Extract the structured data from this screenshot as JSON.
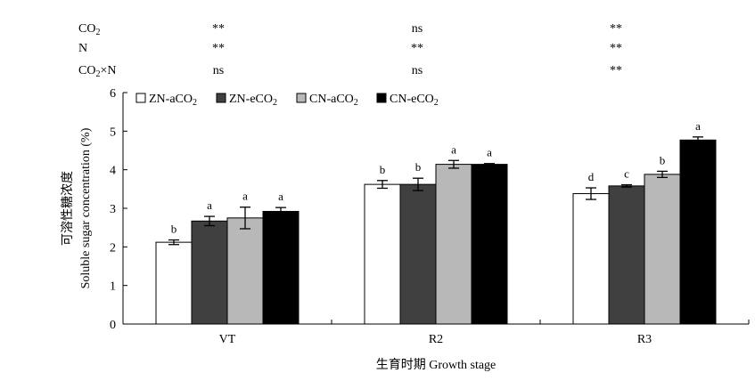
{
  "significance": {
    "rows": [
      {
        "factor": "CO",
        "sub": "2",
        "rest": "",
        "marks": [
          "**",
          "ns",
          "**"
        ]
      },
      {
        "factor": "N",
        "sub": "",
        "rest": "",
        "marks": [
          "**",
          "**",
          "**"
        ]
      },
      {
        "factor": "CO",
        "sub": "2",
        "rest": "×N",
        "marks": [
          "ns",
          "ns",
          "**"
        ]
      }
    ]
  },
  "chart_data": {
    "type": "bar",
    "xlabel": "生育时期 Growth stage",
    "ylabel_cn": "可溶性糖浓度",
    "ylabel_en": "Soluble sugar concentration (%)",
    "ylim": [
      0,
      6
    ],
    "yticks": [
      0,
      1,
      2,
      3,
      4,
      5,
      6
    ],
    "categories": [
      "VT",
      "R2",
      "R3"
    ],
    "legend_position": "top-left",
    "series": [
      {
        "name": "ZN-aCO",
        "name_sub": "2",
        "color": "#ffffff",
        "values": [
          2.12,
          3.62,
          3.38
        ],
        "errors": [
          0.06,
          0.1,
          0.15
        ],
        "letters": [
          "b",
          "b",
          "d"
        ]
      },
      {
        "name": "ZN-eCO",
        "name_sub": "2",
        "color": "#404040",
        "values": [
          2.67,
          3.62,
          3.58
        ],
        "errors": [
          0.12,
          0.16,
          0.03
        ],
        "letters": [
          "a",
          "b",
          "c"
        ]
      },
      {
        "name": "CN-aCO",
        "name_sub": "2",
        "color": "#b8b8b8",
        "values": [
          2.75,
          4.14,
          3.88
        ],
        "errors": [
          0.28,
          0.1,
          0.08
        ],
        "letters": [
          "a",
          "a",
          "b"
        ]
      },
      {
        "name": "CN-eCO",
        "name_sub": "2",
        "color": "#000000",
        "values": [
          2.92,
          4.14,
          4.77
        ],
        "errors": [
          0.1,
          0.02,
          0.08
        ],
        "letters": [
          "a",
          "a",
          "a"
        ]
      }
    ]
  }
}
